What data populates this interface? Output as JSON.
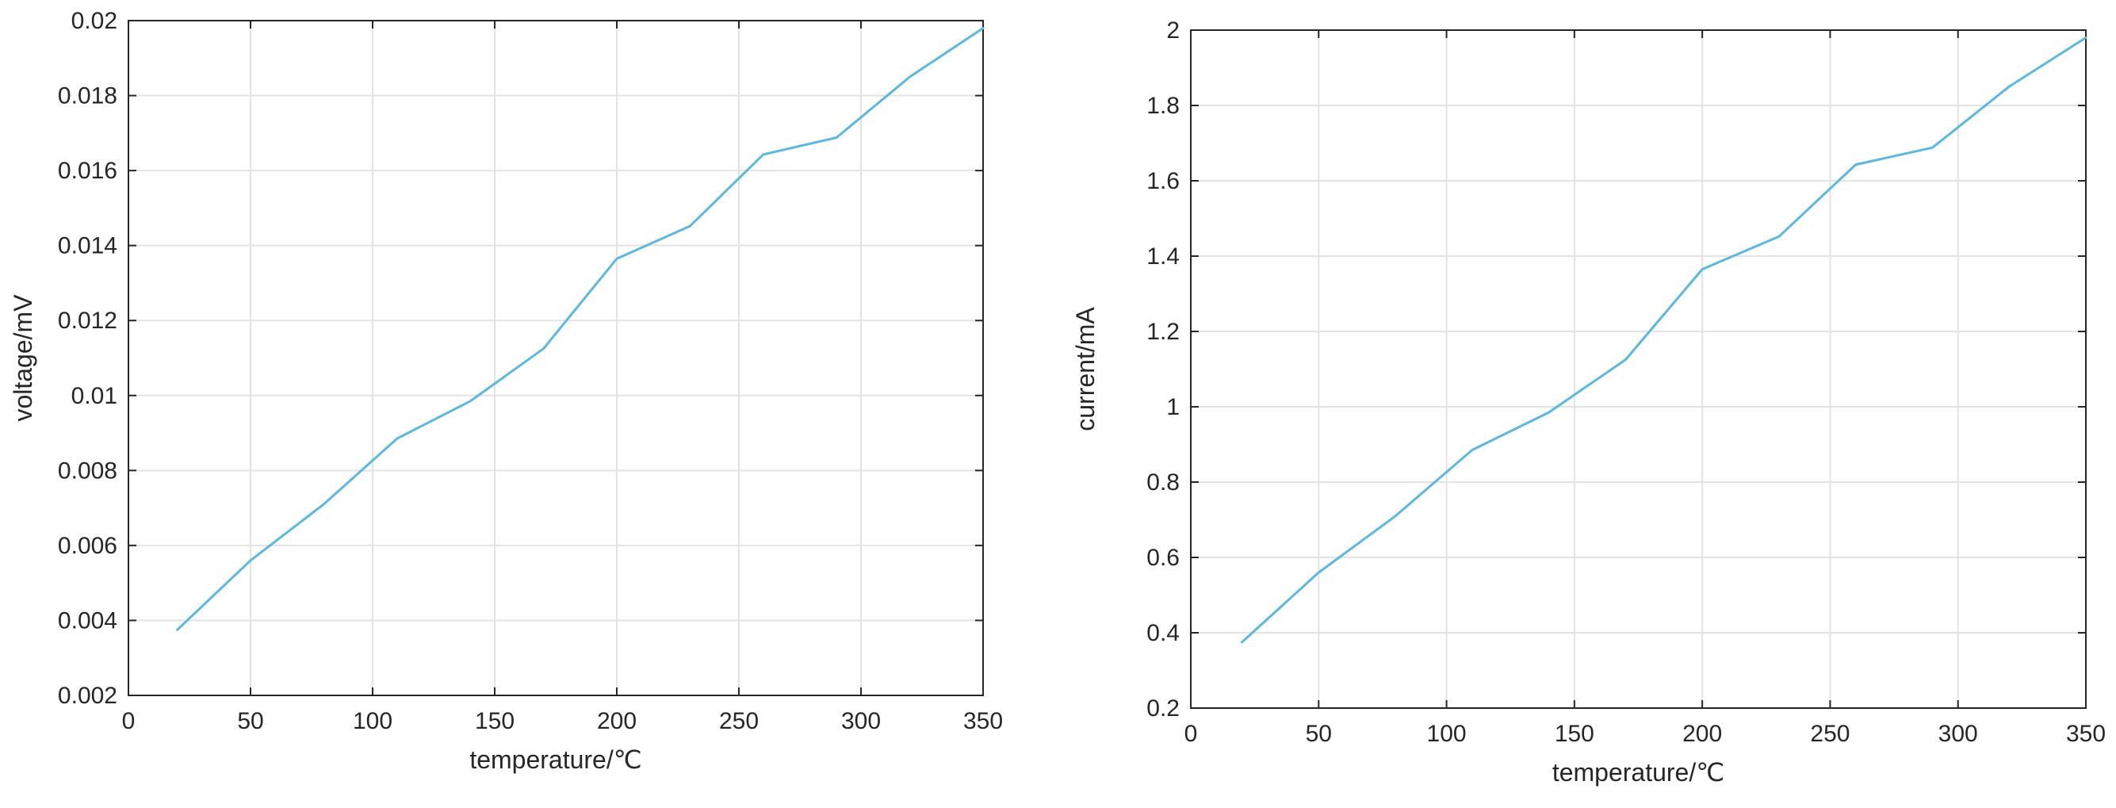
{
  "line_color": "#5bb8e0",
  "chart_data": [
    {
      "type": "line",
      "title": "",
      "xlabel": "temperature/℃",
      "ylabel": "voltage/mV",
      "xlim": [
        0,
        350
      ],
      "ylim": [
        0.002,
        0.02
      ],
      "xticks": [
        0,
        50,
        100,
        150,
        200,
        250,
        300,
        350
      ],
      "xtick_labels": [
        "0",
        "50",
        "100",
        "150",
        "200",
        "250",
        "300",
        "350"
      ],
      "yticks": [
        0.002,
        0.004,
        0.006,
        0.008,
        0.01,
        0.012,
        0.014,
        0.016,
        0.018,
        0.02
      ],
      "ytick_labels": [
        "0.002",
        "0.004",
        "0.006",
        "0.008",
        "0.01",
        "0.012",
        "0.014",
        "0.016",
        "0.018",
        "0.02"
      ],
      "grid": true,
      "series": [
        {
          "x": [
            20,
            50,
            80,
            110,
            140,
            170,
            200,
            230,
            260,
            290,
            320,
            350
          ],
          "values": [
            0.00375,
            0.0056,
            0.0071,
            0.00885,
            0.00985,
            0.01125,
            0.01365,
            0.01452,
            0.01643,
            0.01688,
            0.0185,
            0.0198
          ]
        }
      ]
    },
    {
      "type": "line",
      "title": "",
      "xlabel": "temperature/℃",
      "ylabel": "current/mA",
      "xlim": [
        0,
        350
      ],
      "ylim": [
        0.2,
        2
      ],
      "xticks": [
        0,
        50,
        100,
        150,
        200,
        250,
        300,
        350
      ],
      "xtick_labels": [
        "0",
        "50",
        "100",
        "150",
        "200",
        "250",
        "300",
        "350"
      ],
      "yticks": [
        0.2,
        0.4,
        0.6,
        0.8,
        1,
        1.2,
        1.4,
        1.6,
        1.8,
        2
      ],
      "ytick_labels": [
        "0.2",
        "0.4",
        "0.6",
        "0.8",
        "1",
        "1.2",
        "1.4",
        "1.6",
        "1.8",
        "2"
      ],
      "grid": true,
      "series": [
        {
          "x": [
            20,
            50,
            80,
            110,
            140,
            170,
            200,
            230,
            260,
            290,
            320,
            350
          ],
          "values": [
            0.375,
            0.56,
            0.71,
            0.885,
            0.985,
            1.125,
            1.365,
            1.452,
            1.643,
            1.688,
            1.85,
            1.98
          ]
        }
      ]
    }
  ]
}
